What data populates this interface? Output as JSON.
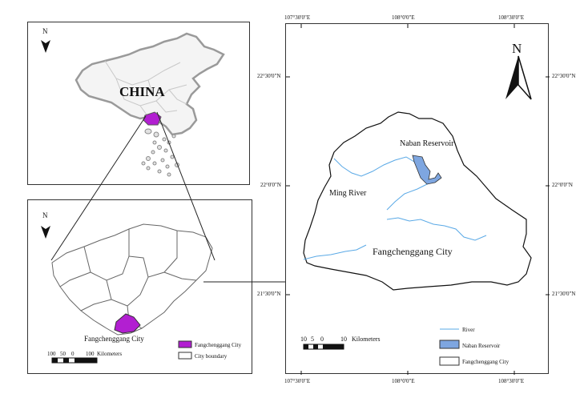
{
  "china_panel": {
    "label": "CHINA",
    "north": "N"
  },
  "region_panel": {
    "north": "N",
    "city_label": "Fangchenggang City",
    "scale_numbers": [
      "100",
      "50",
      "0",
      "100"
    ],
    "scale_unit": "Kilometers",
    "legend": [
      {
        "label": "Fangchenggang City",
        "color": "#b21fd1"
      },
      {
        "label": "City boundary",
        "color": "#ffffff"
      }
    ]
  },
  "detail_panel": {
    "north": "N",
    "top_ticks": [
      "107°30'0\"E",
      "108°0'0\"E",
      "108°30'0\"E"
    ],
    "bottom_ticks": [
      "107°30'0\"E",
      "108°0'0\"E",
      "108°30'0\"E"
    ],
    "left_ticks": [
      "22°30'0\"N",
      "22°0'0\"N",
      "21°30'0\"N"
    ],
    "right_ticks": [
      "22°30'0\"N",
      "22°0'0\"N",
      "21°30'0\"N"
    ],
    "labels": {
      "reservoir": "Naban Reservoir",
      "river": "Ming River",
      "city": "Fangchenggang City"
    },
    "scale_numbers": [
      "10",
      "5",
      "0",
      "10"
    ],
    "scale_unit": "Kilometers",
    "legend": [
      {
        "label": "River",
        "color": "#5aa9e6"
      },
      {
        "label": "Naban Reservoir",
        "color": "#7ea6e0"
      },
      {
        "label": "Fangchenggang City",
        "color": "#ffffff"
      }
    ]
  }
}
